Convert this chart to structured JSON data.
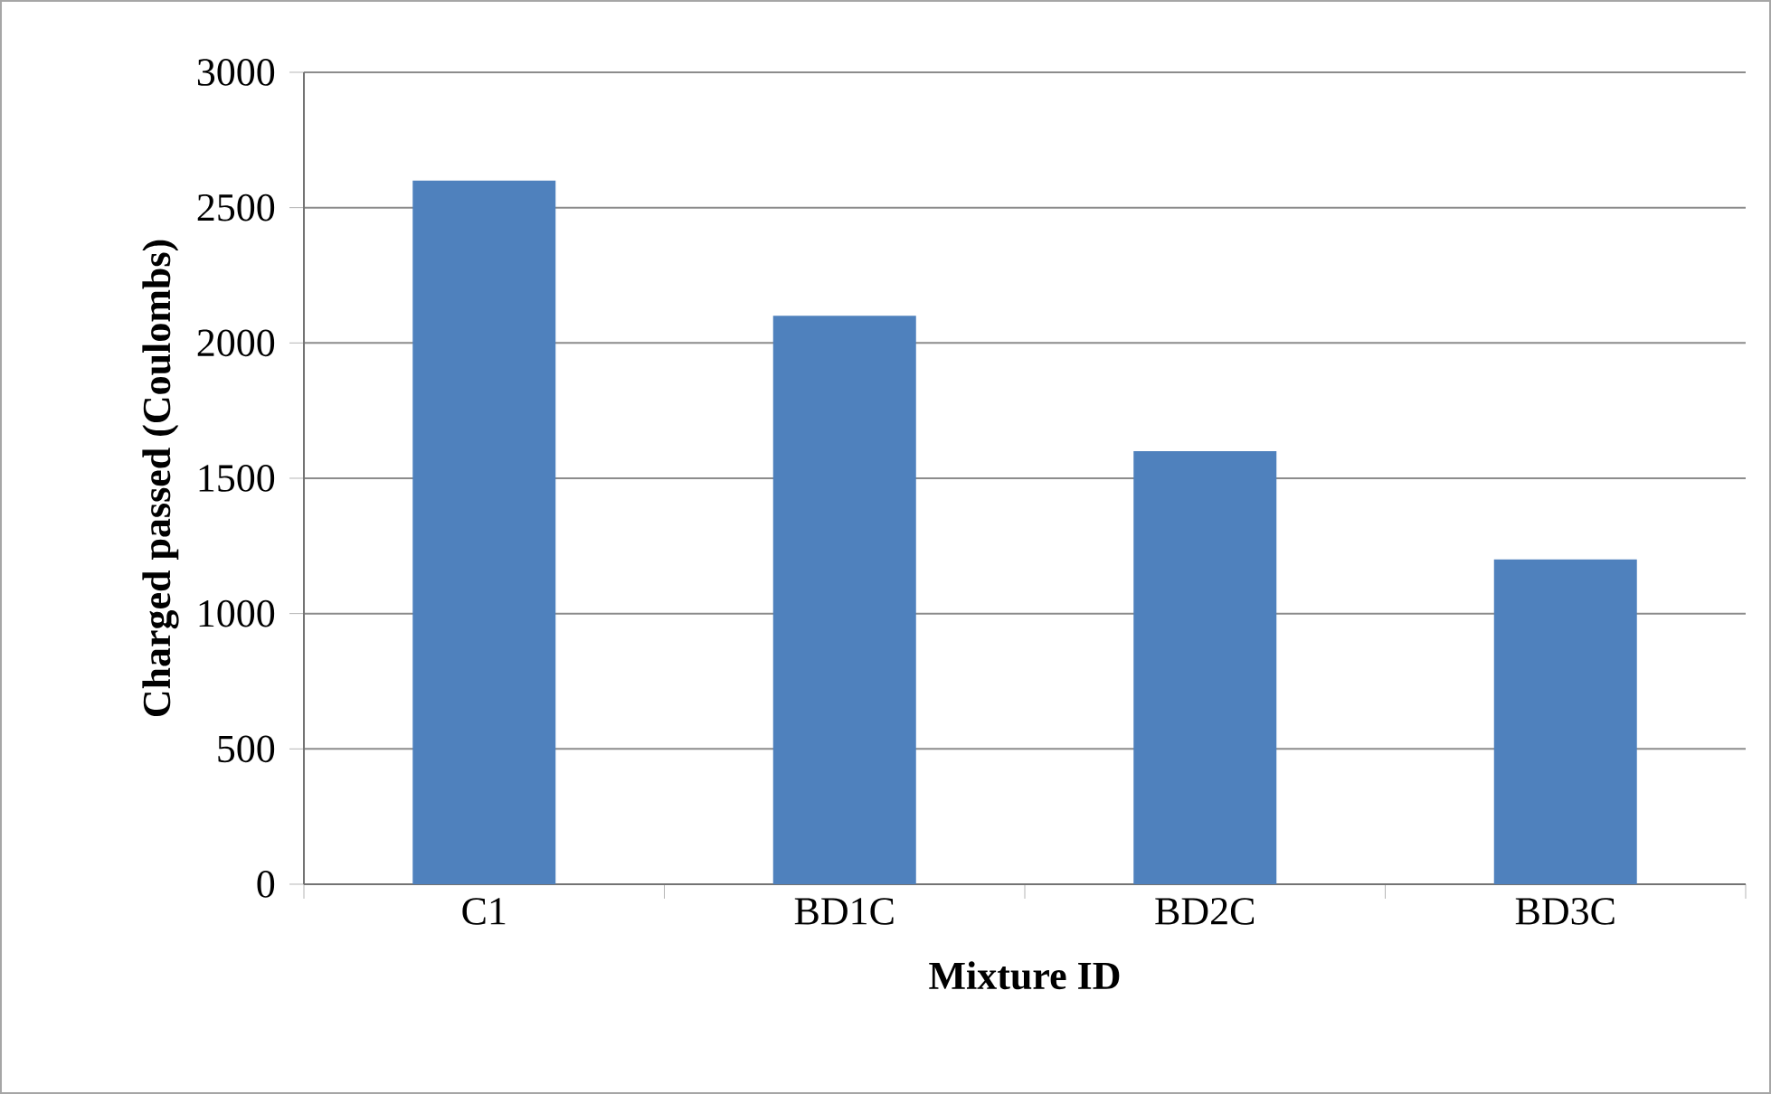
{
  "chart_data": {
    "type": "bar",
    "xlabel": "Mixture ID",
    "ylabel": "Charged passed (Coulombs)",
    "categories": [
      "C1",
      "BD1C",
      "BD2C",
      "BD3C"
    ],
    "values": [
      2600,
      2100,
      1600,
      1200
    ],
    "color": "#4f81bd",
    "ylim": [
      0,
      3000
    ],
    "yticks": [
      0,
      500,
      1000,
      1500,
      2000,
      2500,
      3000
    ],
    "grid": "y"
  }
}
